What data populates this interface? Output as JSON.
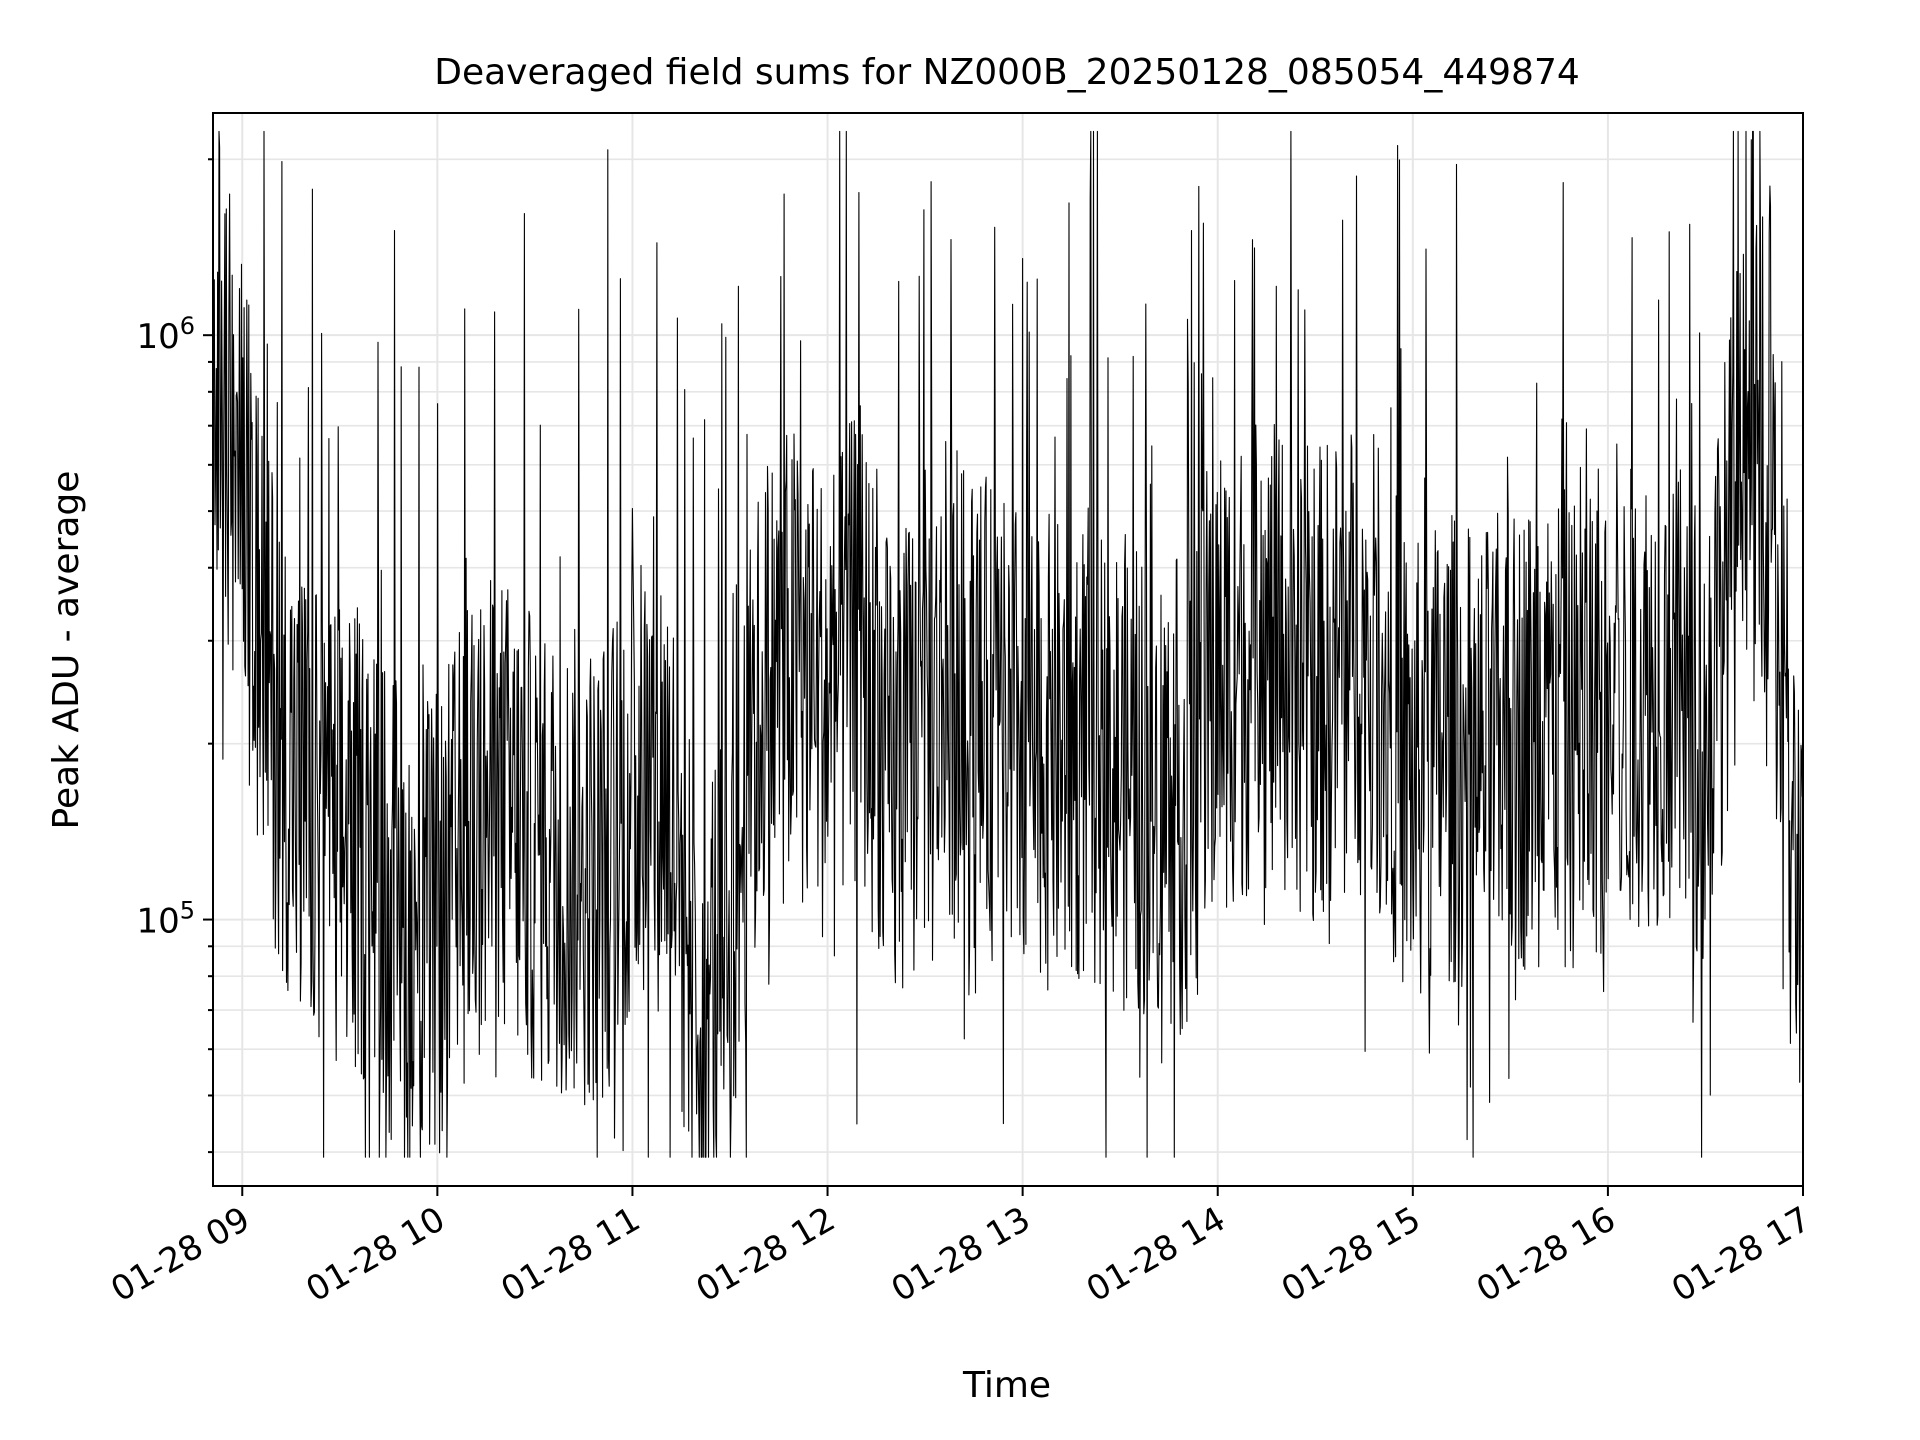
{
  "chart_data": {
    "type": "line",
    "title": "Deaveraged field sums for NZ000B_20250128_085054_449874",
    "xlabel": "Time",
    "ylabel": "Peak ADU - average",
    "x_start": "2025-01-28T08:51:00",
    "x_end": "2025-01-28T17:00:00",
    "x_ticks": [
      "01-28 09",
      "01-28 10",
      "01-28 11",
      "01-28 12",
      "01-28 13",
      "01-28 14",
      "01-28 15",
      "01-28 16",
      "01-28 17"
    ],
    "y_scale": "log",
    "ylim": [
      35000,
      2400000
    ],
    "y_ticks": [
      {
        "base": "10",
        "exp": "5",
        "value": 100000
      },
      {
        "base": "10",
        "exp": "6",
        "value": 1000000
      }
    ],
    "grid": true,
    "line_color": "#000000",
    "series": [
      {
        "points": [
          [
            "08:51",
            1100000
          ],
          [
            "09:00",
            520000
          ],
          [
            "09:10",
            230000
          ],
          [
            "09:20",
            150000
          ],
          [
            "09:30",
            140000
          ],
          [
            "09:40",
            130000
          ],
          [
            "09:50",
            90000
          ],
          [
            "10:00",
            95000
          ],
          [
            "10:10",
            140000
          ],
          [
            "10:20",
            155000
          ],
          [
            "10:30",
            130000
          ],
          [
            "10:40",
            125000
          ],
          [
            "10:50",
            120000
          ],
          [
            "11:00",
            165000
          ],
          [
            "11:10",
            180000
          ],
          [
            "11:20",
            70000
          ],
          [
            "11:30",
            95000
          ],
          [
            "11:40",
            250000
          ],
          [
            "11:50",
            280000
          ],
          [
            "12:00",
            230000
          ],
          [
            "12:10",
            300000
          ],
          [
            "12:20",
            160000
          ],
          [
            "12:30",
            230000
          ],
          [
            "12:40",
            240000
          ],
          [
            "12:50",
            220000
          ],
          [
            "13:00",
            200000
          ],
          [
            "13:10",
            190000
          ],
          [
            "13:20",
            200000
          ],
          [
            "13:30",
            180000
          ],
          [
            "13:40",
            170000
          ],
          [
            "13:50",
            160000
          ],
          [
            "14:00",
            260000
          ],
          [
            "14:10",
            280000
          ],
          [
            "14:20",
            270000
          ],
          [
            "14:30",
            250000
          ],
          [
            "14:40",
            280000
          ],
          [
            "14:50",
            260000
          ],
          [
            "15:00",
            170000
          ],
          [
            "15:10",
            200000
          ],
          [
            "15:20",
            180000
          ],
          [
            "15:30",
            200000
          ],
          [
            "15:40",
            220000
          ],
          [
            "15:50",
            210000
          ],
          [
            "16:00",
            210000
          ],
          [
            "16:10",
            250000
          ],
          [
            "16:20",
            240000
          ],
          [
            "16:30",
            200000
          ],
          [
            "16:40",
            550000
          ],
          [
            "16:50",
            650000
          ],
          [
            "16:55",
            130000
          ],
          [
            "17:00",
            120000
          ]
        ]
      }
    ]
  }
}
